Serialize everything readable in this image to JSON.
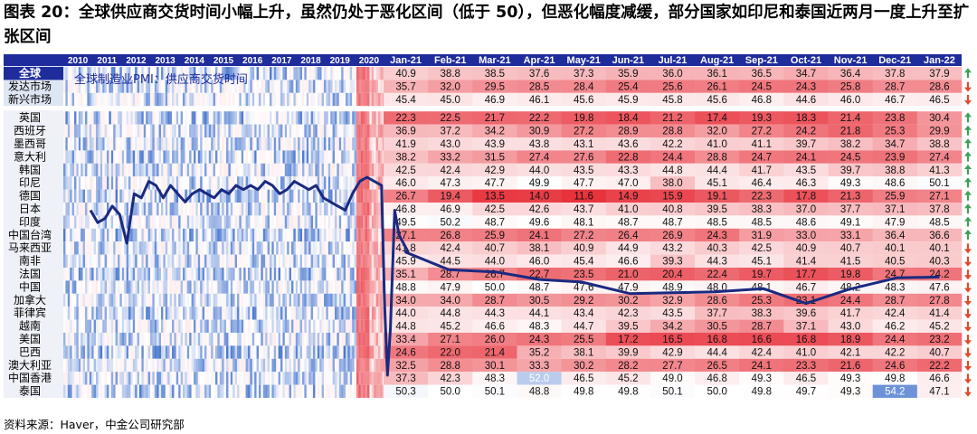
{
  "title": "图表 20：全球供应商交货时间小幅上升，虽然仍处于恶化区间（低于 50），但恶化幅度减缓，部分国家如印尼和泰国近两月一度上升至扩张区间",
  "source": "资料来源：Haver，中金公司研究部",
  "chart_data": {
    "type": "heatmap",
    "inset_title": "全球制造业PMI：供应商交货时间",
    "history_years": [
      "2010",
      "2011",
      "2012",
      "2013",
      "2014",
      "2015",
      "2016",
      "2017",
      "2018",
      "2019",
      "2020"
    ],
    "months": [
      "Jan-21",
      "Feb-21",
      "Mar-21",
      "Apr-21",
      "May-21",
      "Jun-21",
      "Jul-21",
      "Aug-21",
      "Sep-21",
      "Oct-21",
      "Nov-21",
      "Dec-21",
      "Jan-22"
    ],
    "rows": [
      {
        "label": "全球",
        "values": [
          40.9,
          38.8,
          38.5,
          37.6,
          37.3,
          35.9,
          36.0,
          36.1,
          36.5,
          34.7,
          36.4,
          37.8,
          37.9
        ],
        "trend": "up"
      },
      {
        "label": "发达市场",
        "values": [
          35.7,
          32.0,
          29.5,
          28.5,
          28.4,
          25.4,
          25.6,
          26.1,
          24.5,
          24.3,
          25.8,
          28.7,
          28.6
        ],
        "trend": "down"
      },
      {
        "label": "新兴市场",
        "values": [
          45.4,
          45.0,
          46.9,
          46.1,
          45.6,
          45.9,
          45.8,
          45.6,
          46.8,
          44.6,
          46.0,
          46.7,
          46.5
        ],
        "trend": "down"
      },
      {
        "label": "英国",
        "values": [
          22.3,
          22.5,
          21.7,
          22.2,
          19.8,
          18.4,
          21.2,
          17.4,
          19.3,
          18.3,
          21.4,
          23.8,
          30.4
        ],
        "trend": "up"
      },
      {
        "label": "西班牙",
        "values": [
          36.9,
          37.2,
          34.2,
          30.9,
          27.2,
          28.9,
          28.8,
          32.0,
          27.2,
          24.2,
          21.8,
          25.3,
          29.9
        ],
        "trend": "up"
      },
      {
        "label": "墨西哥",
        "values": [
          41.9,
          43.0,
          43.9,
          43.8,
          43.1,
          43.6,
          42.2,
          41.0,
          41.1,
          39.7,
          38.2,
          34.7,
          38.8
        ],
        "trend": "up"
      },
      {
        "label": "意大利",
        "values": [
          38.2,
          33.2,
          31.5,
          27.4,
          27.6,
          22.8,
          24.4,
          28.8,
          24.7,
          24.1,
          24.5,
          23.9,
          27.4
        ],
        "trend": "up"
      },
      {
        "label": "韩国",
        "values": [
          42.5,
          42.4,
          42.9,
          44.0,
          43.5,
          43.3,
          44.8,
          44.4,
          41.7,
          43.5,
          39.7,
          38.8,
          41.3
        ],
        "trend": "up"
      },
      {
        "label": "印尼",
        "values": [
          46.0,
          47.3,
          47.7,
          49.9,
          47.7,
          47.0,
          38.0,
          45.1,
          46.4,
          46.3,
          49.3,
          48.6,
          50.1
        ],
        "trend": "up"
      },
      {
        "label": "德国",
        "values": [
          26.7,
          19.4,
          13.5,
          14.0,
          11.6,
          14.9,
          15.9,
          19.1,
          22.3,
          17.8,
          21.3,
          25.9,
          27.1
        ],
        "trend": "up"
      },
      {
        "label": "日本",
        "values": [
          46.8,
          46.9,
          42.5,
          42.6,
          43.7,
          41.0,
          40.8,
          39.5,
          38.3,
          37.0,
          37.7,
          37.1,
          37.8
        ],
        "trend": "up"
      },
      {
        "label": "印度",
        "values": [
          49.5,
          50.2,
          48.7,
          49.6,
          48.1,
          48.7,
          48.7,
          48.5,
          48.5,
          48.6,
          49.1,
          47.9,
          48.5
        ],
        "trend": "up"
      },
      {
        "label": "中国台湾",
        "values": [
          27.1,
          26.8,
          25.9,
          24.1,
          27.2,
          26.4,
          26.9,
          24.3,
          31.9,
          33.0,
          33.1,
          36.4,
          36.6
        ],
        "trend": "up"
      },
      {
        "label": "马来西亚",
        "values": [
          41.8,
          42.4,
          40.7,
          38.1,
          40.9,
          44.9,
          43.2,
          40.3,
          42.5,
          40.9,
          40.7,
          40.1,
          40.1
        ],
        "trend": "down"
      },
      {
        "label": "南非",
        "values": [
          45.9,
          44.5,
          44.0,
          46.0,
          45.4,
          46.6,
          39.3,
          44.3,
          45.1,
          41.4,
          41.5,
          40.5,
          40.3
        ],
        "trend": "down"
      },
      {
        "label": "法国",
        "values": [
          35.1,
          28.7,
          26.7,
          22.7,
          23.5,
          21.0,
          20.4,
          22.4,
          19.7,
          17.7,
          19.8,
          24.7,
          24.2
        ],
        "trend": "down"
      },
      {
        "label": "中国",
        "values": [
          48.8,
          47.9,
          50.0,
          48.7,
          47.6,
          47.9,
          48.9,
          48.0,
          48.1,
          46.7,
          48.2,
          48.3,
          47.6
        ],
        "trend": "down"
      },
      {
        "label": "加拿大",
        "values": [
          34.0,
          34.0,
          28.7,
          30.5,
          29.2,
          30.2,
          32.9,
          28.6,
          25.3,
          23.1,
          24.4,
          28.7,
          27.8
        ],
        "trend": "down"
      },
      {
        "label": "菲律宾",
        "values": [
          44.0,
          44.8,
          44.3,
          44.1,
          43.4,
          42.3,
          43.5,
          37.7,
          38.3,
          39.6,
          41.7,
          42.4,
          41.4
        ],
        "trend": "down"
      },
      {
        "label": "越南",
        "values": [
          44.8,
          45.2,
          46.6,
          48.3,
          44.7,
          39.5,
          34.2,
          30.5,
          28.7,
          37.1,
          43.0,
          46.2,
          45.2
        ],
        "trend": "down"
      },
      {
        "label": "美国",
        "values": [
          33.4,
          27.1,
          26.0,
          24.3,
          25.5,
          17.2,
          16.5,
          16.8,
          16.6,
          16.8,
          18.9,
          24.4,
          23.2
        ],
        "trend": "down"
      },
      {
        "label": "巴西",
        "values": [
          24.6,
          22.0,
          21.4,
          35.2,
          38.1,
          39.9,
          42.9,
          44.4,
          42.4,
          41.0,
          42.1,
          42.2,
          40.7
        ],
        "trend": "down"
      },
      {
        "label": "澳大利亚",
        "values": [
          32.5,
          28.8,
          30.1,
          33.3,
          30.2,
          28.2,
          27.7,
          26.5,
          24.1,
          23.3,
          21.6,
          24.6,
          22.2
        ],
        "trend": "down"
      },
      {
        "label": "中国香港",
        "values": [
          37.3,
          42.3,
          48.3,
          52.0,
          46.5,
          45.2,
          49.0,
          46.8,
          49.3,
          46.5,
          49.3,
          49.8,
          46.6
        ],
        "trend": "down"
      },
      {
        "label": "泰国",
        "values": [
          50.3,
          50.0,
          50.1,
          48.8,
          49.8,
          49.8,
          50.1,
          50.0,
          49.8,
          49.7,
          49.3,
          54.2,
          47.1
        ],
        "trend": "down"
      }
    ],
    "line_series": {
      "name": "全球制造业PMI：供应商交货时间",
      "years": [
        2010,
        2010.25,
        2010.5,
        2010.75,
        2011,
        2011.25,
        2011.5,
        2011.75,
        2012,
        2012.25,
        2012.5,
        2012.75,
        2013,
        2013.25,
        2013.5,
        2013.75,
        2014,
        2014.25,
        2014.5,
        2014.75,
        2015,
        2015.25,
        2015.5,
        2015.75,
        2016,
        2016.25,
        2016.5,
        2016.75,
        2017,
        2017.25,
        2017.5,
        2017.75,
        2018,
        2018.25,
        2018.5,
        2018.75,
        2019,
        2019.25,
        2019.5,
        2019.75,
        2020,
        2020.1,
        2020.2,
        2020.3,
        2020.45,
        2020.6,
        2020.75,
        2020.9,
        2021,
        2021.08,
        2021.17,
        2021.25,
        2021.33,
        2021.42,
        2021.5,
        2021.58,
        2021.67,
        2021.75,
        2021.83,
        2021.92,
        2022
      ],
      "values": [
        46.0,
        44.5,
        45.0,
        46.5,
        45.5,
        42.0,
        48.0,
        47.5,
        49.5,
        49.0,
        47.5,
        49.0,
        48.0,
        47.0,
        48.0,
        48.5,
        48.0,
        47.5,
        48.5,
        48.0,
        49.0,
        48.5,
        49.0,
        48.5,
        49.5,
        49.0,
        48.0,
        48.5,
        49.5,
        49.0,
        48.5,
        49.0,
        47.5,
        47.0,
        46.5,
        46.0,
        48.0,
        49.5,
        50.0,
        49.5,
        49.0,
        35.0,
        26.0,
        31.5,
        46.0,
        43.0,
        42.0,
        41.0,
        40.9,
        38.8,
        38.5,
        37.6,
        37.3,
        35.9,
        36.0,
        36.1,
        36.5,
        34.7,
        36.4,
        37.8,
        37.9
      ]
    },
    "color_scale": {
      "low": "#e8323c",
      "mid": "#ffffff",
      "high": "#2f64c8",
      "midpoint": 50
    },
    "header_bg": "#1f2c9c",
    "line_color": "#1a2a80",
    "up_color": "#3fa05a",
    "down_color": "#e0492a"
  }
}
